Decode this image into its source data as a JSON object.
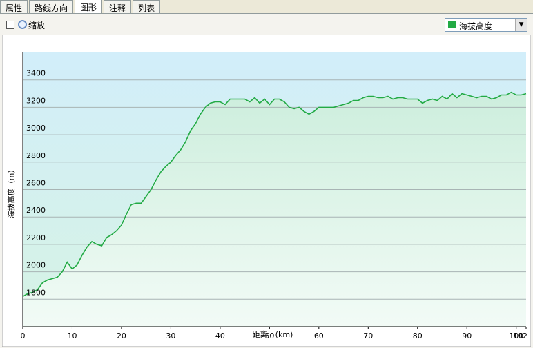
{
  "tabs": [
    "属性",
    "路线方向",
    "图形",
    "注释",
    "列表"
  ],
  "toolbar": {
    "zoom": "缩放"
  },
  "chart_data": {
    "type": "line",
    "x_label": "距离　(km)",
    "y_label": "海拔高度（m）",
    "x": [
      0,
      1,
      2,
      3,
      4,
      5,
      6,
      7,
      8,
      9,
      10,
      11,
      12,
      13,
      14,
      15,
      16,
      17,
      18,
      19,
      20,
      21,
      22,
      23,
      24,
      25,
      26,
      27,
      28,
      29,
      30,
      31,
      32,
      33,
      34,
      35,
      36,
      37,
      38,
      39,
      40,
      41,
      42,
      43,
      44,
      45,
      46,
      47,
      48,
      49,
      50,
      51,
      52,
      53,
      54,
      55,
      56,
      57,
      58,
      59,
      60,
      61,
      62,
      63,
      64,
      65,
      66,
      67,
      68,
      69,
      70,
      71,
      72,
      73,
      74,
      75,
      76,
      77,
      78,
      79,
      80,
      81,
      82,
      83,
      84,
      85,
      86,
      87,
      88,
      89,
      90,
      91,
      92,
      93,
      94,
      95,
      96,
      97,
      98,
      99,
      100,
      101,
      102
    ],
    "series": [
      {
        "name": "海拔高度",
        "color": "#22aa44",
        "values": [
          1820,
          1840,
          1850,
          1870,
          1920,
          1940,
          1950,
          1960,
          2000,
          2070,
          2020,
          2050,
          2120,
          2180,
          2220,
          2200,
          2190,
          2250,
          2270,
          2300,
          2340,
          2420,
          2490,
          2500,
          2500,
          2550,
          2600,
          2670,
          2730,
          2770,
          2800,
          2850,
          2890,
          2950,
          3030,
          3080,
          3150,
          3200,
          3230,
          3240,
          3240,
          3220,
          3260,
          3260,
          3260,
          3260,
          3240,
          3270,
          3230,
          3260,
          3220,
          3260,
          3260,
          3240,
          3200,
          3190,
          3200,
          3170,
          3150,
          3170,
          3200,
          3200,
          3200,
          3200,
          3210,
          3220,
          3230,
          3250,
          3250,
          3270,
          3280,
          3280,
          3270,
          3270,
          3280,
          3260,
          3270,
          3270,
          3260,
          3260,
          3260,
          3230,
          3250,
          3260,
          3250,
          3280,
          3260,
          3300,
          3270,
          3300,
          3290,
          3280,
          3270,
          3280,
          3280,
          3260,
          3270,
          3290,
          3290,
          3310,
          3290,
          3290,
          3300
        ]
      }
    ],
    "xlim": [
      0,
      102
    ],
    "xticks": [
      0,
      10,
      20,
      30,
      40,
      50,
      60,
      70,
      80,
      90,
      100,
      102
    ],
    "ylim": [
      1600,
      3600
    ],
    "yticks": [
      1800,
      2000,
      2200,
      2400,
      2600,
      2800,
      3000,
      3200,
      3400
    ],
    "grid": true
  }
}
